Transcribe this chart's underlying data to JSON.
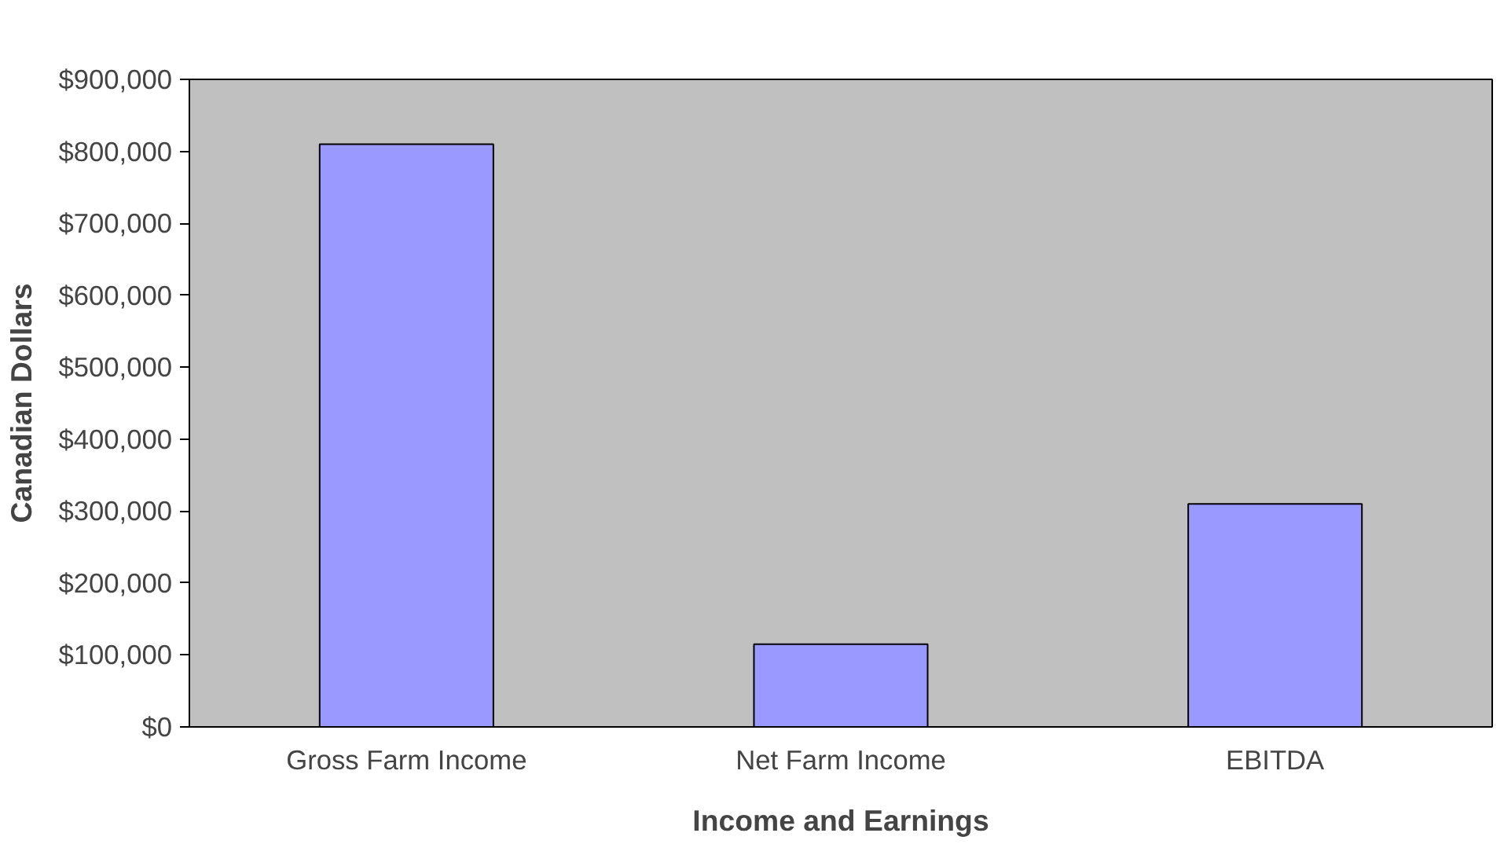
{
  "chart_data": {
    "type": "bar",
    "xlabel": "Income and Earnings",
    "ylabel": "Canadian Dollars",
    "categories": [
      "Gross Farm Income",
      "Net Farm Income",
      "EBITDA"
    ],
    "values": [
      810000,
      115000,
      310000
    ],
    "color": "#9999ff",
    "ylim": [
      0,
      900000
    ],
    "yticks": [
      {
        "value": 0,
        "label": "$0"
      },
      {
        "value": 100000,
        "label": "$100,000"
      },
      {
        "value": 200000,
        "label": "$200,000"
      },
      {
        "value": 300000,
        "label": "$300,000"
      },
      {
        "value": 400000,
        "label": "$400,000"
      },
      {
        "value": 500000,
        "label": "$500,000"
      },
      {
        "value": 600000,
        "label": "$600,000"
      },
      {
        "value": 700000,
        "label": "$700,000"
      },
      {
        "value": 800000,
        "label": "$800,000"
      },
      {
        "value": 900000,
        "label": "$900,000"
      }
    ],
    "grid": false
  }
}
